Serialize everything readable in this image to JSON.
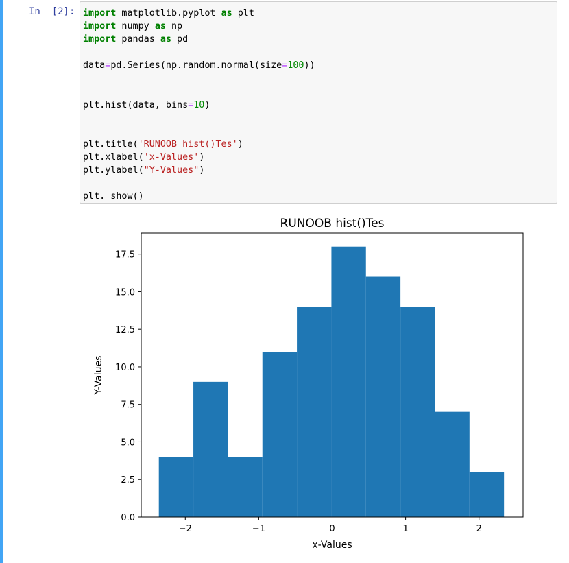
{
  "cell": {
    "prompt": "In  [2]:",
    "code_lines": [
      [
        {
          "t": "import",
          "c": "kw"
        },
        {
          "t": " matplotlib.pyplot "
        },
        {
          "t": "as",
          "c": "kw"
        },
        {
          "t": " plt"
        }
      ],
      [
        {
          "t": "import",
          "c": "kw"
        },
        {
          "t": " numpy "
        },
        {
          "t": "as",
          "c": "kw"
        },
        {
          "t": " np"
        }
      ],
      [
        {
          "t": "import",
          "c": "kw"
        },
        {
          "t": " pandas "
        },
        {
          "t": "as",
          "c": "kw"
        },
        {
          "t": " pd"
        }
      ],
      [],
      [
        {
          "t": "data"
        },
        {
          "t": "=",
          "c": "op"
        },
        {
          "t": "pd.Series(np.random.normal(size"
        },
        {
          "t": "=",
          "c": "op"
        },
        {
          "t": "100",
          "c": "num"
        },
        {
          "t": "))"
        }
      ],
      [],
      [],
      [
        {
          "t": "plt.hist(data, bins"
        },
        {
          "t": "=",
          "c": "op"
        },
        {
          "t": "10",
          "c": "num"
        },
        {
          "t": ")"
        }
      ],
      [],
      [],
      [
        {
          "t": "plt.title("
        },
        {
          "t": "'RUNOOB hist()Tes'",
          "c": "str"
        },
        {
          "t": ")"
        }
      ],
      [
        {
          "t": "plt.xlabel("
        },
        {
          "t": "'x-Values'",
          "c": "str"
        },
        {
          "t": ")"
        }
      ],
      [
        {
          "t": "plt.ylabel("
        },
        {
          "t": "\"Y-Values\"",
          "c": "str"
        },
        {
          "t": ")"
        }
      ],
      [],
      [
        {
          "t": "plt. show()"
        }
      ]
    ]
  },
  "chart_data": {
    "type": "bar",
    "title": "RUNOOB hist()Tes",
    "xlabel": "x-Values",
    "ylabel": "Y-Values",
    "bin_edges": [
      -2.36,
      -1.89,
      -1.42,
      -0.95,
      -0.48,
      -0.01,
      0.46,
      0.93,
      1.4,
      1.87,
      2.34
    ],
    "values": [
      4,
      9,
      4,
      11,
      14,
      18,
      16,
      14,
      7,
      3
    ],
    "xlim": [
      -2.6,
      2.6
    ],
    "ylim": [
      0,
      18.9
    ],
    "xticks": [
      -2,
      -1,
      0,
      1,
      2
    ],
    "xtick_labels": [
      "−2",
      "−1",
      "0",
      "1",
      "2"
    ],
    "yticks": [
      0,
      2.5,
      5,
      7.5,
      10,
      12.5,
      15,
      17.5
    ],
    "ytick_labels": [
      "0.0",
      "2.5",
      "5.0",
      "7.5",
      "10.0",
      "12.5",
      "15.0",
      "17.5"
    ],
    "bar_color": "#1f77b4",
    "grid": false
  }
}
